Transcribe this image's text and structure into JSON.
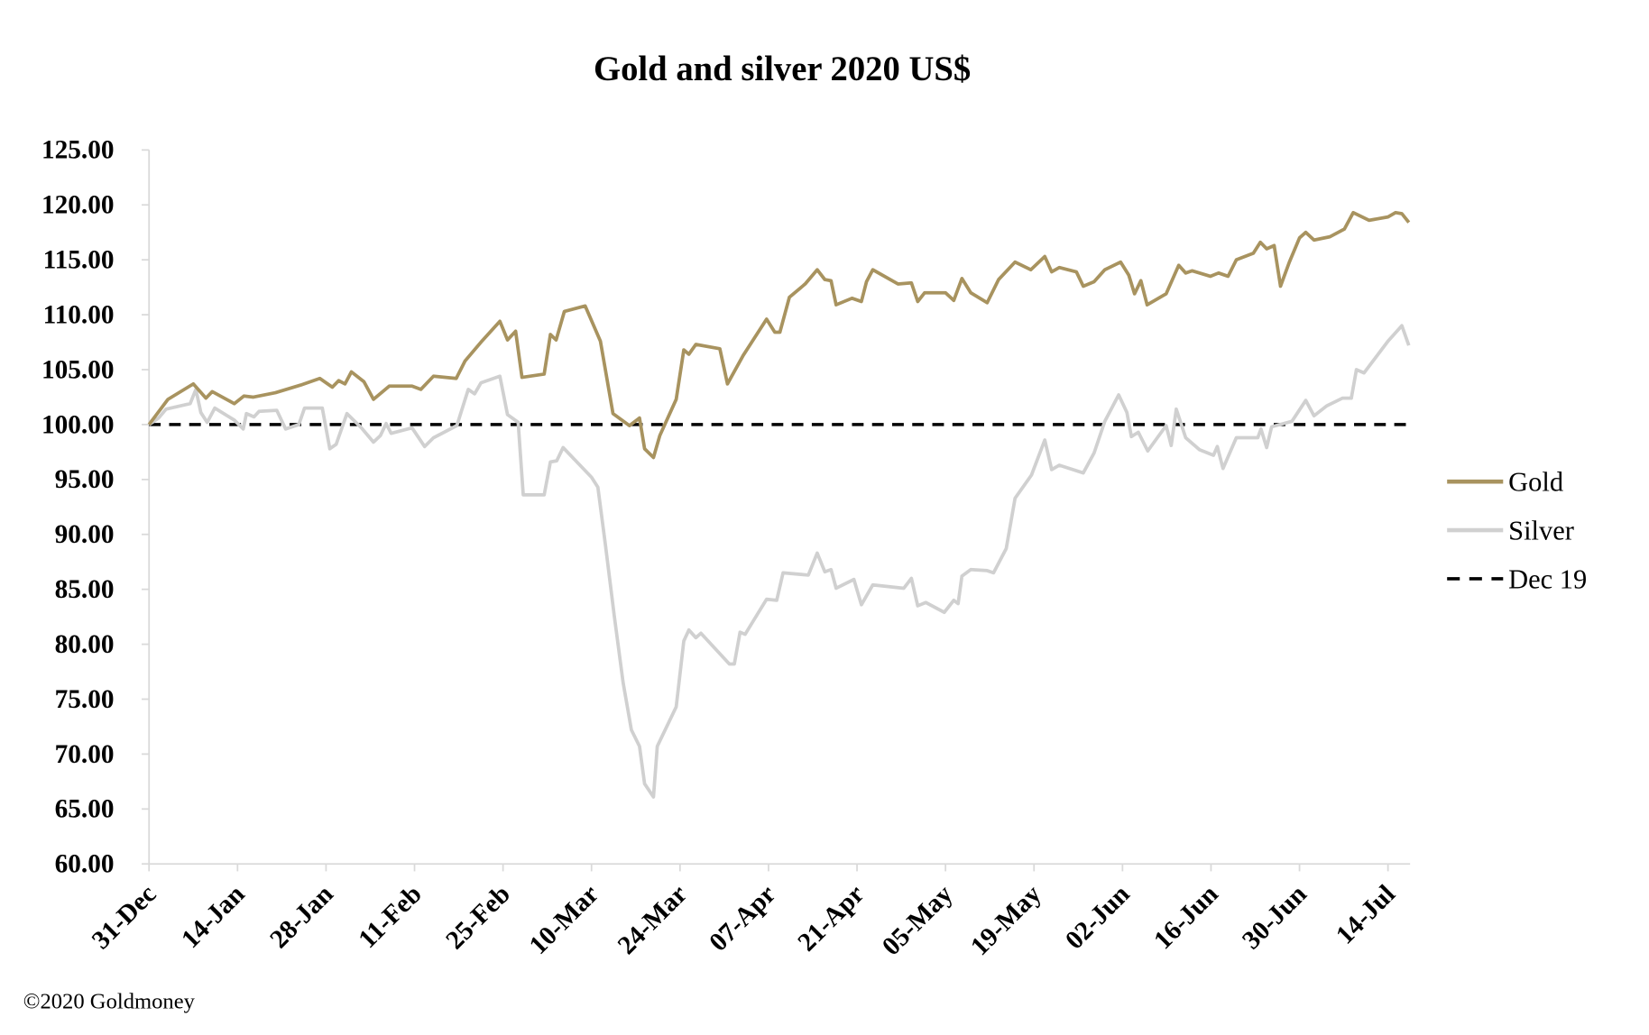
{
  "chart_data": {
    "type": "line",
    "title": "Gold and silver 2020  US$",
    "xlabel": "",
    "ylabel": "",
    "ylim": [
      60,
      125
    ],
    "yticks": [
      "60.00",
      "65.00",
      "70.00",
      "75.00",
      "80.00",
      "85.00",
      "90.00",
      "95.00",
      "100.00",
      "105.00",
      "110.00",
      "115.00",
      "120.00",
      "125.00"
    ],
    "x_unit": "days since 31-Dec-2019",
    "xlim": [
      0,
      199.5
    ],
    "xticks": [
      {
        "day": 0,
        "label": "31-Dec"
      },
      {
        "day": 14,
        "label": "14-Jan"
      },
      {
        "day": 28,
        "label": "28-Jan"
      },
      {
        "day": 42,
        "label": "11-Feb"
      },
      {
        "day": 56,
        "label": "25-Feb"
      },
      {
        "day": 70,
        "label": "10-Mar"
      },
      {
        "day": 84,
        "label": "24-Mar"
      },
      {
        "day": 98,
        "label": "07-Apr"
      },
      {
        "day": 112,
        "label": "21-Apr"
      },
      {
        "day": 126,
        "label": "05-May"
      },
      {
        "day": 140,
        "label": "19-May"
      },
      {
        "day": 154,
        "label": "02-Jun"
      },
      {
        "day": 168,
        "label": "16-Jun"
      },
      {
        "day": 182,
        "label": "30-Jun"
      },
      {
        "day": 196,
        "label": "14-Jul"
      }
    ],
    "legend_position": "right",
    "series": [
      {
        "name": "Gold",
        "color": "#A8935F",
        "style": "solid",
        "points": [
          [
            0,
            100
          ],
          [
            3,
            102.3
          ],
          [
            7,
            103.7
          ],
          [
            9,
            102.4
          ],
          [
            10,
            103
          ],
          [
            13.5,
            101.9
          ],
          [
            15,
            102.6
          ],
          [
            16.5,
            102.5
          ],
          [
            20,
            102.9
          ],
          [
            24,
            103.6
          ],
          [
            27,
            104.2
          ],
          [
            29,
            103.4
          ],
          [
            30,
            104
          ],
          [
            31,
            103.7
          ],
          [
            32,
            104.8
          ],
          [
            34,
            103.9
          ],
          [
            35.5,
            102.3
          ],
          [
            38,
            103.5
          ],
          [
            41.6,
            103.5
          ],
          [
            43,
            103.2
          ],
          [
            45,
            104.4
          ],
          [
            48.6,
            104.2
          ],
          [
            50,
            105.8
          ],
          [
            52.5,
            107.5
          ],
          [
            55.5,
            109.4
          ],
          [
            56.7,
            107.7
          ],
          [
            58,
            108.5
          ],
          [
            59,
            104.3
          ],
          [
            62.5,
            104.6
          ],
          [
            63.5,
            108.2
          ],
          [
            64.4,
            107.7
          ],
          [
            65.7,
            110.3
          ],
          [
            69,
            110.8
          ],
          [
            71.4,
            107.6
          ],
          [
            73.4,
            101
          ],
          [
            76,
            99.9
          ],
          [
            77.6,
            100.6
          ],
          [
            78.4,
            97.8
          ],
          [
            79.8,
            97
          ],
          [
            80.8,
            99
          ],
          [
            83.4,
            102.3
          ],
          [
            84.6,
            106.8
          ],
          [
            85.4,
            106.4
          ],
          [
            86.5,
            107.3
          ],
          [
            90.3,
            106.9
          ],
          [
            91.5,
            103.7
          ],
          [
            94,
            106.3
          ],
          [
            97.7,
            109.6
          ],
          [
            99,
            108.4
          ],
          [
            99.8,
            108.4
          ],
          [
            101.3,
            111.6
          ],
          [
            103.8,
            112.8
          ],
          [
            105.7,
            114.1
          ],
          [
            106.9,
            113.2
          ],
          [
            107.9,
            113.1
          ],
          [
            108.7,
            110.9
          ],
          [
            111.2,
            111.5
          ],
          [
            112.7,
            111.2
          ],
          [
            113.5,
            113
          ],
          [
            114.5,
            114.1
          ],
          [
            118.5,
            112.8
          ],
          [
            120.6,
            112.9
          ],
          [
            121.6,
            111.2
          ],
          [
            122.7,
            112
          ],
          [
            126,
            112
          ],
          [
            127.3,
            111.3
          ],
          [
            128.6,
            113.3
          ],
          [
            130,
            112
          ],
          [
            132.6,
            111.1
          ],
          [
            134.4,
            113.2
          ],
          [
            137,
            114.8
          ],
          [
            139.5,
            114.1
          ],
          [
            141.7,
            115.3
          ],
          [
            142.8,
            113.9
          ],
          [
            144,
            114.3
          ],
          [
            146.7,
            113.9
          ],
          [
            147.8,
            112.6
          ],
          [
            149.5,
            113
          ],
          [
            151.2,
            114.1
          ],
          [
            153.7,
            114.8
          ],
          [
            155,
            113.6
          ],
          [
            155.9,
            111.9
          ],
          [
            156.9,
            113.1
          ],
          [
            157.9,
            110.9
          ],
          [
            160.9,
            111.9
          ],
          [
            162.9,
            114.5
          ],
          [
            164,
            113.8
          ],
          [
            165,
            114
          ],
          [
            167.9,
            113.5
          ],
          [
            169.2,
            113.8
          ],
          [
            170.7,
            113.5
          ],
          [
            172,
            115
          ],
          [
            174.7,
            115.6
          ],
          [
            175.8,
            116.6
          ],
          [
            176.8,
            116
          ],
          [
            178,
            116.3
          ],
          [
            179,
            112.6
          ],
          [
            180.4,
            114.8
          ],
          [
            182,
            117
          ],
          [
            183,
            117.5
          ],
          [
            184.3,
            116.8
          ],
          [
            186.8,
            117.1
          ],
          [
            189.1,
            117.8
          ],
          [
            190.5,
            119.3
          ],
          [
            193,
            118.6
          ],
          [
            196,
            118.9
          ],
          [
            197.2,
            119.3
          ],
          [
            198.2,
            119.2
          ],
          [
            199.3,
            118.4
          ]
        ]
      },
      {
        "name": "Silver",
        "color": "#D0D0D0",
        "style": "solid",
        "points": [
          [
            0,
            100
          ],
          [
            1.5,
            100.6
          ],
          [
            2.7,
            101.4
          ],
          [
            6.5,
            101.9
          ],
          [
            7.4,
            103.2
          ],
          [
            8.2,
            101.1
          ],
          [
            9.2,
            100.2
          ],
          [
            10.4,
            101.5
          ],
          [
            13.5,
            100.4
          ],
          [
            14.9,
            99.6
          ],
          [
            15.4,
            101
          ],
          [
            16.6,
            100.7
          ],
          [
            17.4,
            101.2
          ],
          [
            20.2,
            101.3
          ],
          [
            21.6,
            99.6
          ],
          [
            23.7,
            100
          ],
          [
            24.6,
            101.5
          ],
          [
            27.4,
            101.5
          ],
          [
            28.6,
            97.8
          ],
          [
            29.6,
            98.2
          ],
          [
            31.3,
            101
          ],
          [
            33.6,
            99.7
          ],
          [
            35.5,
            98.4
          ],
          [
            36.6,
            99
          ],
          [
            37.5,
            100.1
          ],
          [
            38.3,
            99.2
          ],
          [
            41.6,
            99.7
          ],
          [
            43.6,
            98
          ],
          [
            45,
            98.8
          ],
          [
            48.7,
            99.9
          ],
          [
            50.5,
            103.2
          ],
          [
            51.5,
            102.8
          ],
          [
            52.5,
            103.8
          ],
          [
            55.5,
            104.4
          ],
          [
            56.7,
            100.9
          ],
          [
            58.4,
            100.2
          ],
          [
            59.2,
            93.6
          ],
          [
            62.5,
            93.6
          ],
          [
            63.5,
            96.6
          ],
          [
            64.5,
            96.7
          ],
          [
            65.5,
            97.9
          ],
          [
            70,
            95.2
          ],
          [
            71,
            94.3
          ],
          [
            72.2,
            89
          ],
          [
            73.6,
            82.6
          ],
          [
            75,
            76.5
          ],
          [
            76.3,
            72.2
          ],
          [
            77.6,
            70.7
          ],
          [
            78.4,
            67.3
          ],
          [
            79.8,
            66.1
          ],
          [
            80.4,
            70.7
          ],
          [
            83.4,
            74.3
          ],
          [
            84.6,
            80.3
          ],
          [
            85.4,
            81.3
          ],
          [
            86.5,
            80.6
          ],
          [
            87.3,
            81
          ],
          [
            91.8,
            78.2
          ],
          [
            92.6,
            78.2
          ],
          [
            93.5,
            81.1
          ],
          [
            94.3,
            80.9
          ],
          [
            97.7,
            84.1
          ],
          [
            99.3,
            84
          ],
          [
            100.3,
            86.5
          ],
          [
            104.3,
            86.3
          ],
          [
            105.7,
            88.3
          ],
          [
            106.9,
            86.6
          ],
          [
            107.9,
            86.8
          ],
          [
            108.7,
            85.1
          ],
          [
            111.5,
            85.9
          ],
          [
            112.7,
            83.6
          ],
          [
            114.5,
            85.4
          ],
          [
            119.4,
            85.1
          ],
          [
            120.6,
            86
          ],
          [
            121.6,
            83.5
          ],
          [
            122.9,
            83.8
          ],
          [
            125.8,
            82.9
          ],
          [
            127.3,
            84
          ],
          [
            128,
            83.7
          ],
          [
            128.6,
            86.2
          ],
          [
            130,
            86.8
          ],
          [
            132.6,
            86.7
          ],
          [
            133.6,
            86.5
          ],
          [
            135.6,
            88.7
          ],
          [
            137,
            93.3
          ],
          [
            139.6,
            95.4
          ],
          [
            141.7,
            98.6
          ],
          [
            142.8,
            95.9
          ],
          [
            144,
            96.3
          ],
          [
            147.8,
            95.6
          ],
          [
            149.5,
            97.4
          ],
          [
            151.2,
            100.3
          ],
          [
            153.4,
            102.7
          ],
          [
            154.7,
            101.1
          ],
          [
            155.4,
            98.9
          ],
          [
            156.5,
            99.3
          ],
          [
            158,
            97.6
          ],
          [
            160.9,
            99.9
          ],
          [
            161.7,
            98.1
          ],
          [
            162.5,
            101.4
          ],
          [
            164,
            98.8
          ],
          [
            166.2,
            97.7
          ],
          [
            168.4,
            97.2
          ],
          [
            169,
            98
          ],
          [
            169.9,
            96
          ],
          [
            172,
            98.8
          ],
          [
            175.4,
            98.8
          ],
          [
            175.9,
            99.6
          ],
          [
            176.8,
            97.9
          ],
          [
            177.6,
            99.8
          ],
          [
            180.8,
            100.3
          ],
          [
            183,
            102.2
          ],
          [
            184.3,
            100.8
          ],
          [
            186.3,
            101.7
          ],
          [
            188.8,
            102.4
          ],
          [
            190.2,
            102.4
          ],
          [
            191,
            105
          ],
          [
            192.2,
            104.7
          ],
          [
            196,
            107.6
          ],
          [
            198.2,
            109
          ],
          [
            199.3,
            107.2
          ]
        ]
      },
      {
        "name": "Dec 19",
        "color": "#000000",
        "style": "dashed",
        "points": [
          [
            0,
            100
          ],
          [
            199.3,
            100
          ]
        ]
      }
    ]
  },
  "footer": {
    "copyright": "©2020 Goldmoney"
  }
}
